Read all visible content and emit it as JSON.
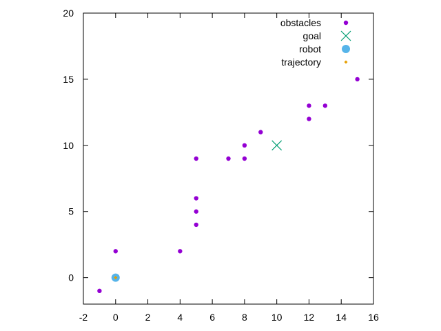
{
  "chart_data": {
    "type": "scatter",
    "title": "",
    "xlabel": "",
    "ylabel": "",
    "xlim": [
      -2,
      16
    ],
    "ylim": [
      -2,
      20
    ],
    "xticks": [
      -2,
      0,
      2,
      4,
      6,
      8,
      10,
      12,
      14,
      16
    ],
    "yticks": [
      0,
      5,
      10,
      15,
      20
    ],
    "xtick_labels": [
      "-2",
      "0",
      "2",
      "4",
      "6",
      "8",
      "10",
      "12",
      "14",
      "16"
    ],
    "ytick_labels": [
      "0",
      "5",
      "10",
      "15",
      "20"
    ],
    "grid": false,
    "legend_position": "top-right",
    "series": [
      {
        "name": "obstacles",
        "marker": "filled-circle-small",
        "color": "#9400d3",
        "points": [
          [
            -1,
            -1
          ],
          [
            0,
            2
          ],
          [
            4,
            2
          ],
          [
            5,
            4
          ],
          [
            5,
            5
          ],
          [
            5,
            6
          ],
          [
            5,
            9
          ],
          [
            7,
            9
          ],
          [
            8,
            9
          ],
          [
            8,
            10
          ],
          [
            9,
            11
          ],
          [
            12,
            12
          ],
          [
            12,
            13
          ],
          [
            13,
            13
          ],
          [
            15,
            15
          ]
        ]
      },
      {
        "name": "goal",
        "marker": "cross",
        "color": "#009e73",
        "points": [
          [
            10,
            10
          ]
        ]
      },
      {
        "name": "robot",
        "marker": "filled-circle-large",
        "color": "#56b4e9",
        "points": [
          [
            0,
            0
          ]
        ]
      },
      {
        "name": "trajectory",
        "marker": "filled-diamond-small",
        "color": "#e69f00",
        "points": [
          [
            0,
            0
          ]
        ]
      }
    ]
  }
}
